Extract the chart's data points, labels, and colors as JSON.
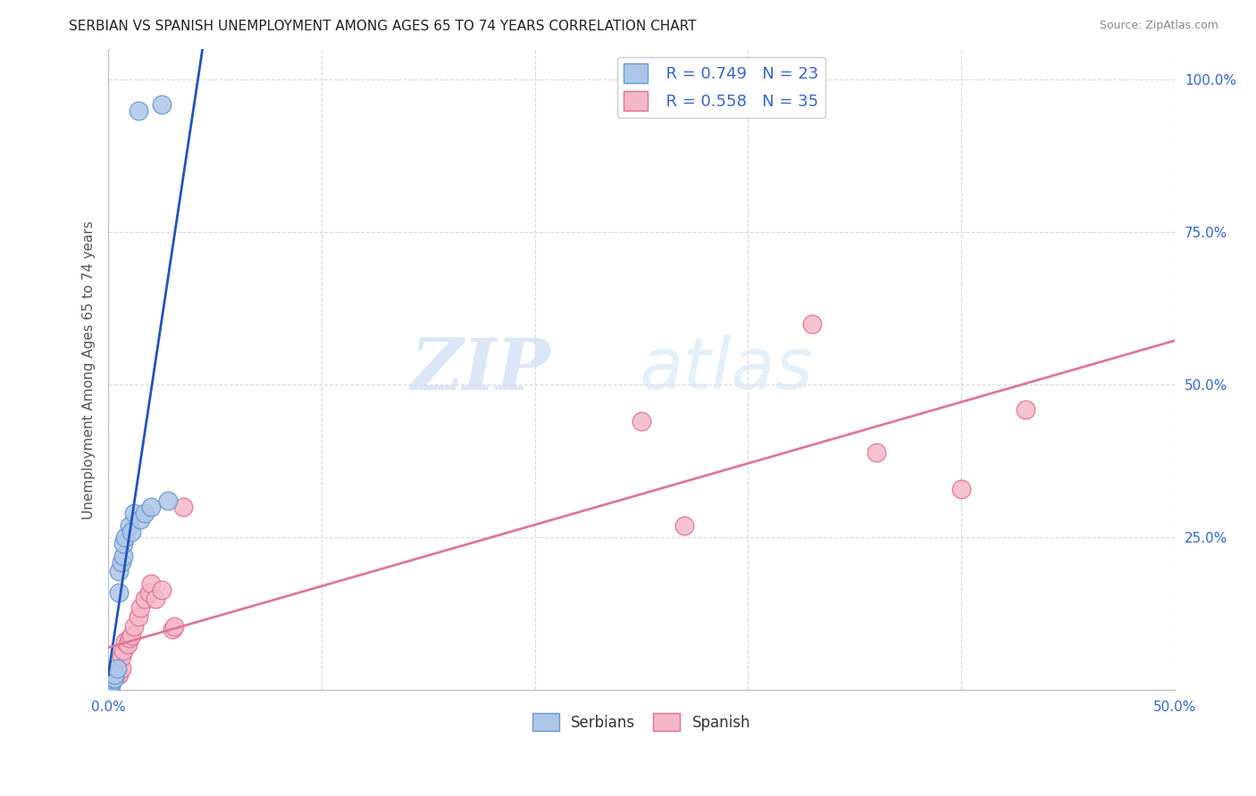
{
  "title": "SERBIAN VS SPANISH UNEMPLOYMENT AMONG AGES 65 TO 74 YEARS CORRELATION CHART",
  "source": "Source: ZipAtlas.com",
  "ylabel": "Unemployment Among Ages 65 to 74 years",
  "xlim": [
    0.0,
    0.5
  ],
  "ylim": [
    0.0,
    1.05
  ],
  "xticks": [
    0.0,
    0.1,
    0.2,
    0.3,
    0.4,
    0.5
  ],
  "yticks": [
    0.0,
    0.25,
    0.5,
    0.75,
    1.0
  ],
  "ytick_labels": [
    "",
    "25.0%",
    "50.0%",
    "75.0%",
    "100.0%"
  ],
  "xtick_labels": [
    "0.0%",
    "",
    "",
    "",
    "",
    "50.0%"
  ],
  "background_color": "#ffffff",
  "grid_color": "#d8d8d8",
  "serbian_color": "#adc6e8",
  "spanish_color": "#f5b8c8",
  "serbian_edge": "#6699cc",
  "spanish_edge": "#e07090",
  "line_serbian_color": "#2255bb",
  "line_spanish_color": "#dd7799",
  "watermark_zip": "ZIP",
  "watermark_atlas": "atlas",
  "legend_serbian_R": "R = 0.749",
  "legend_serbian_N": "N = 23",
  "legend_spanish_R": "R = 0.558",
  "legend_spanish_N": "N = 35",
  "serbian_x": [
    0.0,
    0.0,
    0.001,
    0.001,
    0.002,
    0.003,
    0.003,
    0.004,
    0.005,
    0.005,
    0.006,
    0.007,
    0.007,
    0.008,
    0.01,
    0.011,
    0.012,
    0.014,
    0.015,
    0.017,
    0.02,
    0.025,
    0.028
  ],
  "serbian_y": [
    0.002,
    0.005,
    0.008,
    0.012,
    0.018,
    0.02,
    0.025,
    0.035,
    0.16,
    0.195,
    0.21,
    0.22,
    0.24,
    0.25,
    0.27,
    0.26,
    0.29,
    0.95,
    0.28,
    0.29,
    0.3,
    0.96,
    0.31
  ],
  "spanish_x": [
    0.0,
    0.0,
    0.0,
    0.001,
    0.001,
    0.002,
    0.002,
    0.003,
    0.004,
    0.004,
    0.005,
    0.006,
    0.006,
    0.007,
    0.008,
    0.009,
    0.01,
    0.011,
    0.012,
    0.014,
    0.015,
    0.017,
    0.019,
    0.02,
    0.022,
    0.025,
    0.03,
    0.031,
    0.035,
    0.25,
    0.27,
    0.33,
    0.36,
    0.4,
    0.43
  ],
  "spanish_y": [
    0.001,
    0.004,
    0.008,
    0.01,
    0.015,
    0.018,
    0.02,
    0.022,
    0.025,
    0.03,
    0.025,
    0.035,
    0.055,
    0.065,
    0.08,
    0.075,
    0.085,
    0.09,
    0.105,
    0.12,
    0.135,
    0.15,
    0.16,
    0.175,
    0.15,
    0.165,
    0.1,
    0.105,
    0.3,
    0.44,
    0.27,
    0.6,
    0.39,
    0.33,
    0.46
  ]
}
